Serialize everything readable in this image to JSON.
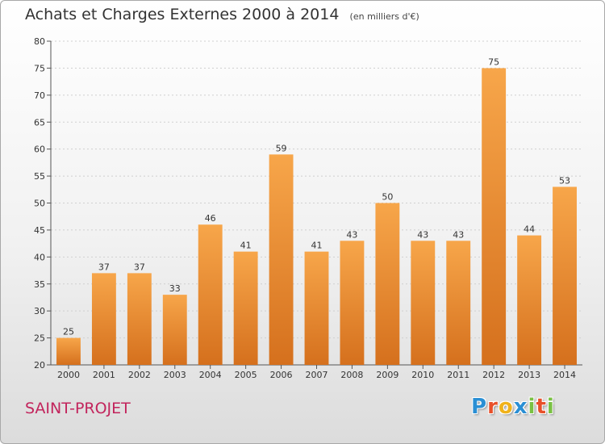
{
  "chart_data": {
    "type": "bar",
    "title": "Achats et Charges Externes 2000 à 2014",
    "subtitle": "(en milliers d'€)",
    "categories": [
      "2000",
      "2001",
      "2002",
      "2003",
      "2004",
      "2005",
      "2006",
      "2007",
      "2008",
      "2009",
      "2010",
      "2011",
      "2012",
      "2013",
      "2014"
    ],
    "values": [
      25,
      37,
      37,
      33,
      46,
      41,
      59,
      41,
      43,
      50,
      43,
      43,
      75,
      44,
      53
    ],
    "ylim": [
      20,
      80
    ],
    "yticks": [
      20,
      25,
      30,
      35,
      40,
      45,
      50,
      55,
      60,
      65,
      70,
      75,
      80
    ],
    "grid": true,
    "bar_color_top": "#f7a64a",
    "bar_color_bottom": "#d5701d"
  },
  "place_name": "SAINT-PROJET",
  "logo": {
    "letters": [
      "P",
      "r",
      "o",
      "x",
      "i",
      "t",
      "i"
    ],
    "colors": [
      "#2a8fd4",
      "#e8502a",
      "#f0b21b",
      "#2a8fd4",
      "#7ac143",
      "#e8502a",
      "#7ac143"
    ]
  }
}
